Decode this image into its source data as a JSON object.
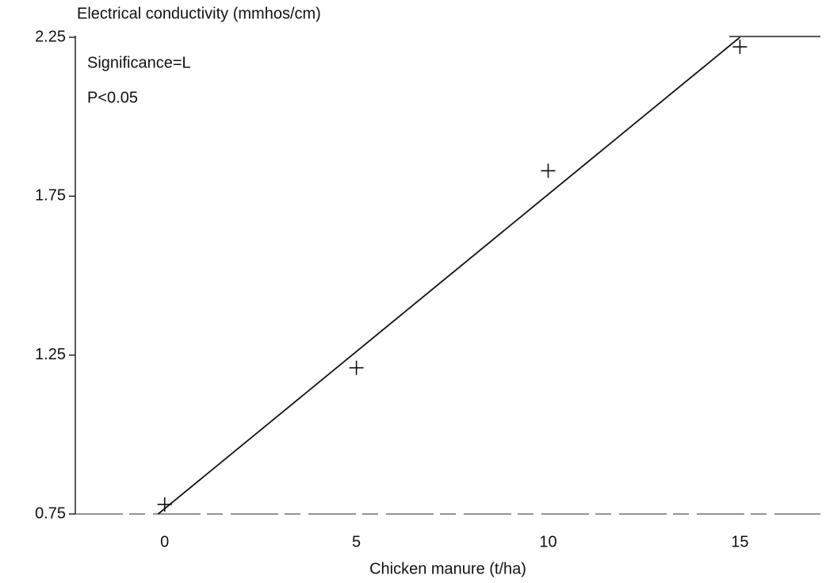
{
  "chart_data": {
    "type": "scatter",
    "title": "Electrical conductivity (mmhos/cm)",
    "x_label": "Chicken manure (t/ha)",
    "annotations": [
      "Significance=L",
      "P<0.05"
    ],
    "x": [
      0,
      5,
      10,
      15
    ],
    "values": [
      0.78,
      1.21,
      1.83,
      2.22
    ],
    "color": "#111111",
    "fit_line": {
      "x": [
        -0.17,
        15
      ],
      "y": [
        0.75,
        2.25
      ]
    },
    "xlim": [
      -2.33,
      17.1
    ],
    "ylim": [
      0.75,
      2.25
    ],
    "xticks": [
      0,
      5,
      10,
      15
    ],
    "yticks": [
      0.75,
      1.25,
      1.75,
      2.25
    ],
    "grid": false
  }
}
